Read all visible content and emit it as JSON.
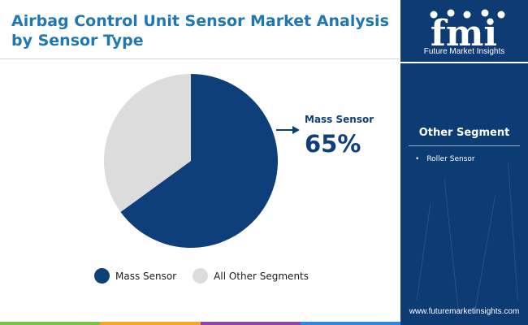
{
  "title": "Airbag Control Unit Sensor Market Analysis by Sensor Type",
  "callout": {
    "label": "Mass Sensor",
    "value": "65%"
  },
  "chart_data": {
    "type": "pie",
    "slices": [
      {
        "label": "Mass Sensor",
        "value": 65,
        "color": "#0e3f7a"
      },
      {
        "label": "All Other Segments",
        "value": 35,
        "color": "#dcdcdc"
      }
    ],
    "legend_position": "bottom"
  },
  "legend": [
    {
      "label": "Mass Sensor",
      "color": "#0e3f7a"
    },
    {
      "label": "All Other Segments",
      "color": "#dcdcdc"
    }
  ],
  "side_panel": {
    "logo_text": "fmi",
    "logo_subtitle": "Future Market Insights",
    "segment_title": "Other Segment",
    "segment_items": [
      "Roller Sensor"
    ],
    "website": "www.futuremarketinsights.com"
  },
  "colors": {
    "accent": "#1f77b4",
    "panel_bg": "#0d3b73",
    "bottom_bar": [
      "#7cc242",
      "#f5a623",
      "#8e44ad",
      "#2e86de"
    ]
  }
}
